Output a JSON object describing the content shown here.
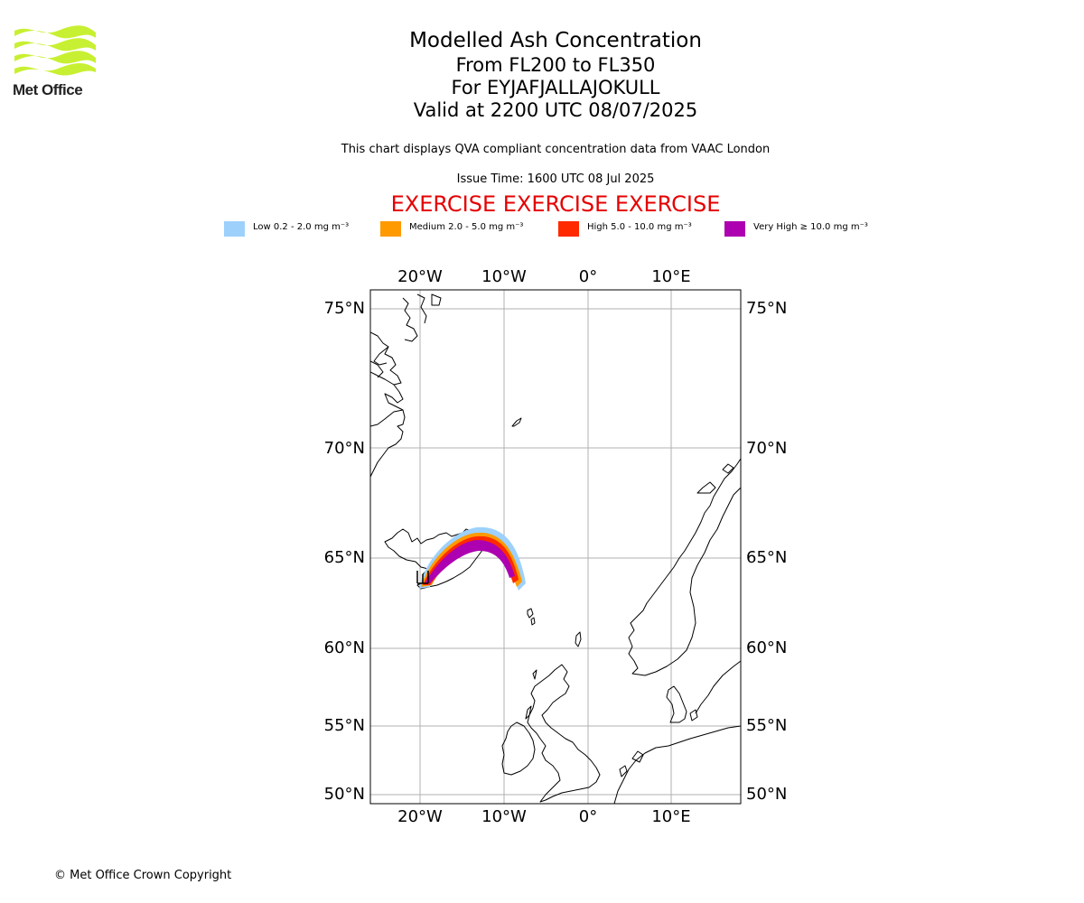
{
  "logo": {
    "text": "Met Office",
    "color": "#c8f032"
  },
  "titles": {
    "main": "Modelled Ash Concentration",
    "levels": "From FL200 to FL350",
    "volcano": "For EYJAFJALLAJOKULL",
    "valid": "Valid at 2200 UTC 08/07/2025"
  },
  "info": {
    "compliance": "This chart displays QVA compliant concentration data from VAAC London",
    "issue_time": "Issue Time: 1600 UTC 08 Jul 2025"
  },
  "exercise_banner": "EXERCISE EXERCISE EXERCISE",
  "legend": [
    {
      "label": "Low 0.2 - 2.0 mg m⁻³",
      "color": "#9dd1fb"
    },
    {
      "label": "Medium 2.0 - 5.0 mg m⁻³",
      "color": "#ff9a00"
    },
    {
      "label": "High 5.0 - 10.0 mg m⁻³",
      "color": "#ff2a00"
    },
    {
      "label": "Very High ≥ 10.0 mg m⁻³",
      "color": "#ad00b0"
    }
  ],
  "map": {
    "projection": "polar stereographic",
    "extent": {
      "lon": [
        -26,
        18
      ],
      "lat": [
        49.5,
        75.5
      ]
    },
    "lon_ticks": [
      "20°W",
      "10°W",
      "0°",
      "10°E"
    ],
    "lat_ticks": [
      "75°N",
      "70°N",
      "65°N",
      "60°N",
      "55°N",
      "50°N"
    ],
    "grid": true,
    "grid_color": "#b0b0b0",
    "source_location": "Eyjafjallajokull volcano, southern Iceland",
    "plume_direction": "arcs north-east over Iceland then south-east towards the Faroe Islands"
  },
  "copyright": "© Met Office Crown Copyright"
}
